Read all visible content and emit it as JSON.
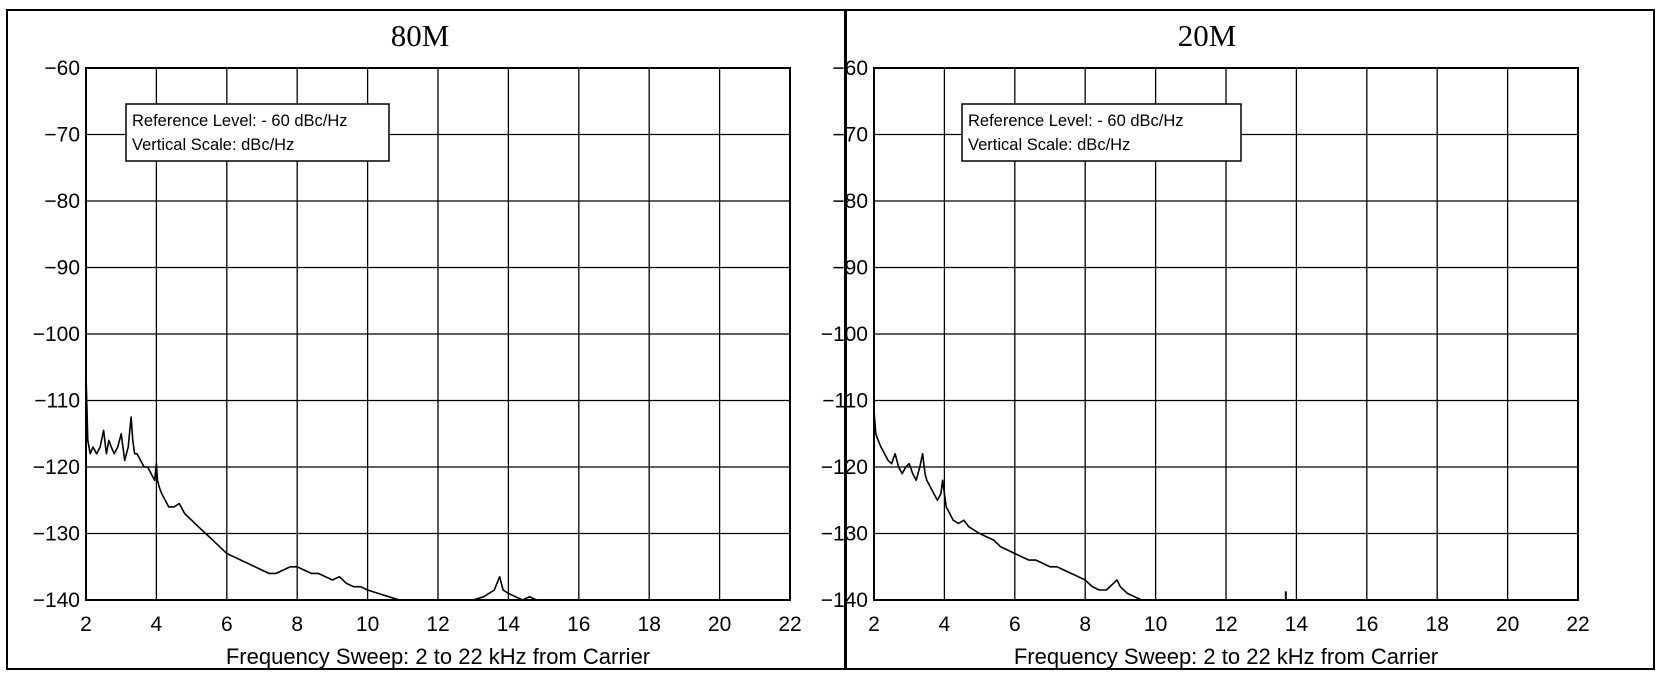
{
  "chart_data": [
    {
      "type": "line",
      "title": "80M",
      "xlabel": "Frequency Sweep: 2 to 22 kHz from Carrier",
      "ylabel": "",
      "xlim": [
        2,
        22
      ],
      "ylim": [
        -140,
        -60
      ],
      "xticks": [
        "2",
        "4",
        "6",
        "8",
        "10",
        "12",
        "14",
        "16",
        "18",
        "20",
        "22"
      ],
      "yticks": [
        "−60",
        "−70",
        "−80",
        "−90",
        "−100",
        "−110",
        "−120",
        "−130",
        "−140"
      ],
      "grid": true,
      "annotation": [
        "Reference Level: - 60 dBc/Hz",
        "Vertical Scale: dBc/Hz"
      ],
      "series": [
        {
          "x": [
            2.0,
            2.05,
            2.12,
            2.2,
            2.3,
            2.4,
            2.5,
            2.58,
            2.65,
            2.72,
            2.8,
            2.9,
            3.0,
            3.1,
            3.2,
            3.28,
            3.33,
            3.38,
            3.45,
            3.55,
            3.65,
            3.75,
            3.85,
            3.95,
            4.0,
            4.03,
            4.08,
            4.15,
            4.25,
            4.35,
            4.5,
            4.65,
            4.8,
            5.0,
            5.2,
            5.4,
            5.6,
            5.8,
            6.0,
            6.2,
            6.4,
            6.6,
            6.8,
            7.0,
            7.2,
            7.4,
            7.6,
            7.8,
            8.0,
            8.2,
            8.4,
            8.6,
            8.8,
            9.0,
            9.2,
            9.4,
            9.6,
            9.8,
            10.0,
            10.3,
            10.6,
            10.9,
            11.2,
            11.5,
            11.8,
            12.1,
            12.4,
            12.7,
            13.0,
            13.3,
            13.6,
            13.75,
            13.85,
            14.0,
            14.2,
            14.4,
            14.6,
            14.8,
            15.0
          ],
          "y": [
            -106,
            -116,
            -118,
            -117,
            -118,
            -117,
            -114.5,
            -118,
            -116,
            -117,
            -118,
            -117,
            -115,
            -119,
            -117,
            -112.5,
            -116,
            -118,
            -118,
            -119,
            -120,
            -120,
            -121,
            -122,
            -119.5,
            -122,
            -123,
            -124,
            -125,
            -126,
            -126,
            -125.5,
            -127,
            -128,
            -129,
            -130,
            -131,
            -132,
            -133,
            -133.5,
            -134,
            -134.5,
            -135,
            -135.5,
            -136,
            -136,
            -135.5,
            -135,
            -135,
            -135.5,
            -136,
            -136,
            -136.5,
            -137,
            -136.5,
            -137.5,
            -138,
            -138,
            -138.5,
            -139,
            -139.5,
            -140,
            -140,
            -140,
            -140,
            -140,
            -140,
            -140,
            -140,
            -139.5,
            -138.5,
            -136.5,
            -138.5,
            -139,
            -139.5,
            -140,
            -139.5,
            -140,
            -140
          ]
        }
      ]
    },
    {
      "type": "line",
      "title": "20M",
      "xlabel": "Frequency Sweep: 2 to 22 kHz from Carrier",
      "ylabel": "",
      "xlim": [
        2,
        22
      ],
      "ylim": [
        -140,
        -60
      ],
      "xticks": [
        "2",
        "4",
        "6",
        "8",
        "10",
        "12",
        "14",
        "16",
        "18",
        "20",
        "22"
      ],
      "yticks": [
        "−60",
        "−70",
        "−80",
        "−90",
        "−100",
        "−110",
        "−120",
        "−130",
        "−140"
      ],
      "grid": true,
      "annotation": [
        "Reference Level: - 60 dBc/Hz",
        "Vertical Scale: dBc/Hz"
      ],
      "series": [
        {
          "x": [
            2.0,
            2.05,
            2.12,
            2.2,
            2.3,
            2.4,
            2.5,
            2.6,
            2.7,
            2.8,
            2.9,
            3.0,
            3.1,
            3.2,
            3.3,
            3.38,
            3.45,
            3.5,
            3.6,
            3.7,
            3.8,
            3.9,
            3.95,
            4.05,
            4.15,
            4.25,
            4.4,
            4.55,
            4.7,
            4.85,
            5.0,
            5.2,
            5.4,
            5.6,
            5.8,
            6.0,
            6.2,
            6.4,
            6.6,
            6.8,
            7.0,
            7.2,
            7.4,
            7.6,
            7.8,
            8.0,
            8.2,
            8.4,
            8.6,
            8.8,
            8.9,
            9.0,
            9.2,
            9.4,
            9.6,
            9.8,
            10.0,
            10.2,
            10.4
          ],
          "y": [
            -111.5,
            -115,
            -116,
            -117,
            -118,
            -119,
            -119.5,
            -118,
            -120,
            -121,
            -120,
            -119.5,
            -121,
            -122,
            -120,
            -118,
            -121,
            -122,
            -123,
            -124,
            -125,
            -124,
            -122,
            -126,
            -127,
            -128,
            -128.5,
            -128,
            -129,
            -129.5,
            -130,
            -130.5,
            -131,
            -132,
            -132.5,
            -133,
            -133.5,
            -134,
            -134,
            -134.5,
            -135,
            -135,
            -135.5,
            -136,
            -136.5,
            -137,
            -138,
            -138.5,
            -138.5,
            -137.5,
            -137,
            -138,
            -139,
            -139.5,
            -140,
            -140,
            -140,
            -140,
            -140
          ]
        }
      ],
      "spikes": [
        {
          "x": 13.7,
          "y": -138.7
        }
      ]
    }
  ]
}
